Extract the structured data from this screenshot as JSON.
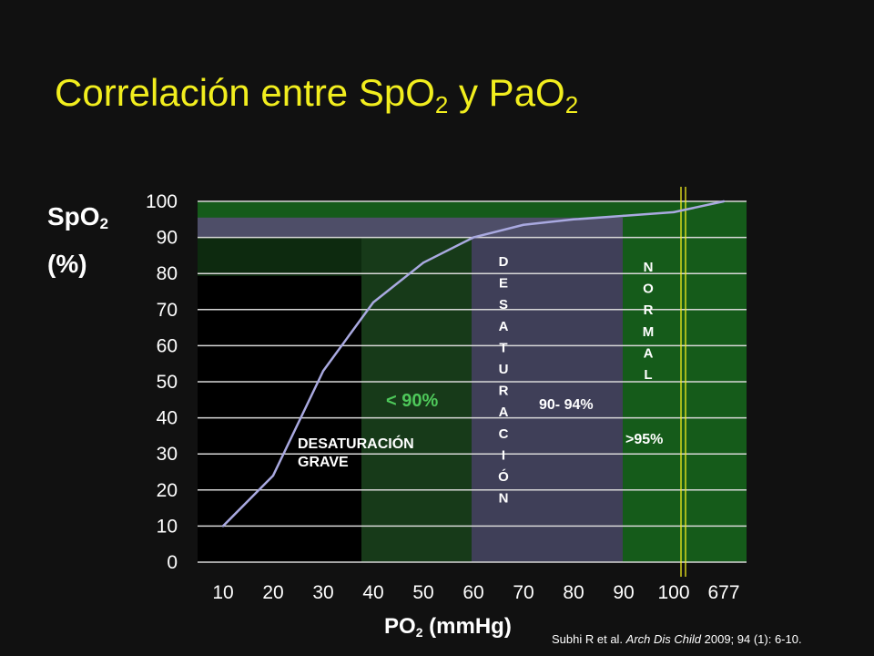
{
  "title": {
    "main": "Correlación entre SpO",
    "sub1": "2",
    "mid": " y PaO",
    "sub2": "2"
  },
  "ylabel": {
    "main": "SpO",
    "sub": "2",
    "unit": "(%)"
  },
  "xlabel": {
    "main": "PO",
    "sub": "2",
    "unit": " (mmHg)"
  },
  "citation": {
    "authors": "Subhi R et al. ",
    "journal": "Arch Dis Child",
    "details": " 2009; 94 (1): 6-10."
  },
  "chart_data": {
    "type": "line",
    "categories": [
      "10",
      "20",
      "30",
      "40",
      "50",
      "60",
      "70",
      "80",
      "90",
      "100",
      "677"
    ],
    "series": [
      {
        "values": [
          10,
          24,
          53,
          72,
          83,
          90,
          93.5,
          95,
          96,
          97,
          100
        ]
      }
    ],
    "y_ticks": [
      "100",
      "90",
      "80",
      "70",
      "60",
      "50",
      "40",
      "30",
      "20",
      "10",
      "0"
    ],
    "ylim": [
      0,
      100
    ],
    "grid": true,
    "zones": [
      {
        "label_lines": [
          "DESATURACIÓN",
          "GRAVE"
        ],
        "color": "#ffffff"
      },
      {
        "label_lines": [
          "< 90%"
        ],
        "color": "#4ec85a"
      },
      {
        "label_lines": [
          "D",
          "E",
          "S",
          "A",
          "T",
          "U",
          "R",
          "A",
          "C",
          "I",
          "Ó",
          "N"
        ],
        "color": "#ffffff"
      },
      {
        "label_lines": [
          "90- 94%"
        ],
        "color": "#ffffff"
      },
      {
        "label_lines": [
          "N",
          "O",
          "R",
          "M",
          "A",
          "L"
        ],
        "color": "#ffffff"
      },
      {
        "label_lines": [
          ">95%"
        ],
        "color": "#ffffff"
      }
    ],
    "colors": {
      "line": "#a9a9e0",
      "grid": "#d8d8d8",
      "dark_green": "#0d2a0f",
      "mid_green": "#173a19",
      "bright_green": "#155b1a",
      "slate": "#3f3f58",
      "band": "#4e4e68",
      "marker": "#f2ee1e"
    }
  }
}
